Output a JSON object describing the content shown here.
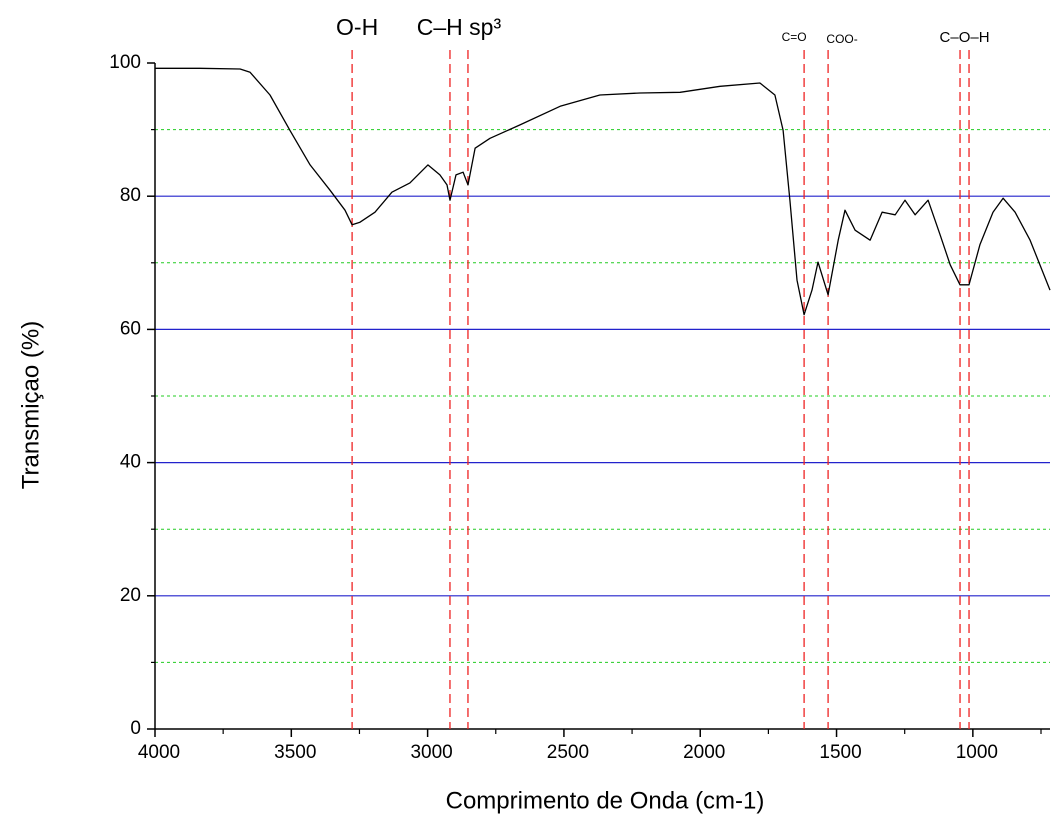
{
  "chart_data": {
    "type": "line",
    "xlabel": "Comprimento de Onda (cm-1)",
    "ylabel": "Transmiçao (%)",
    "xlim": [
      4000,
      717
    ],
    "ylim": [
      0,
      100
    ],
    "xticks": [
      4000,
      3500,
      3000,
      2500,
      2000,
      1500,
      1000
    ],
    "minor_xticks": [
      3750,
      3250,
      2750,
      2250,
      1750,
      1250,
      750
    ],
    "yticks": [
      0,
      20,
      40,
      60,
      80,
      100
    ],
    "minor_yticks": [
      10,
      30,
      50,
      70,
      90
    ],
    "grid": true,
    "grid_color": "#2222cc",
    "minor_grid_color": "#22cc22",
    "series": [
      {
        "color": "#000000",
        "x": [
          4000,
          3835,
          3688,
          3651,
          3578,
          3505,
          3431,
          3358,
          3303,
          3277,
          3248,
          3193,
          3131,
          3065,
          2999,
          2955,
          2929,
          2918,
          2896,
          2870,
          2852,
          2826,
          2771,
          2661,
          2514,
          2368,
          2221,
          2074,
          1927,
          1781,
          1726,
          1696,
          1671,
          1645,
          1619,
          1590,
          1568,
          1531,
          1494,
          1469,
          1432,
          1377,
          1333,
          1285,
          1249,
          1212,
          1164,
          1120,
          1083,
          1047,
          1014,
          974,
          926,
          889,
          845,
          790,
          717
        ],
        "values": [
          99.2,
          99.2,
          99.1,
          98.6,
          95.2,
          89.9,
          84.7,
          80.9,
          77.9,
          75.7,
          76.1,
          77.6,
          80.6,
          82.0,
          84.7,
          83.2,
          81.7,
          79.4,
          83.2,
          83.6,
          81.7,
          87.2,
          88.7,
          90.7,
          93.5,
          95.2,
          95.5,
          95.6,
          96.5,
          97.0,
          95.2,
          89.9,
          79.4,
          67.4,
          62.2,
          65.9,
          70.1,
          65.2,
          73.4,
          77.9,
          74.9,
          73.4,
          77.6,
          77.2,
          79.4,
          77.2,
          79.4,
          74.2,
          69.7,
          66.7,
          66.7,
          72.7,
          77.6,
          79.7,
          77.6,
          73.4,
          65.9
        ]
      }
    ],
    "marker_color": "#ee2222",
    "annotations": [
      {
        "text": "O-H",
        "x": [
          3277
        ]
      },
      {
        "text": "C–H sp³",
        "x": [
          2918,
          2852
        ]
      },
      {
        "text": "C=O",
        "x": [
          1619
        ]
      },
      {
        "text": "COO-",
        "x": [
          1531
        ]
      },
      {
        "text": "C–O–H",
        "x": [
          1047,
          1014
        ]
      }
    ]
  }
}
